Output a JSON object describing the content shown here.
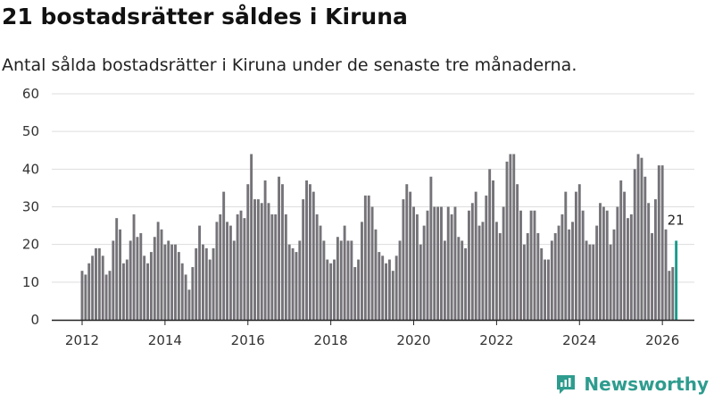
{
  "title": "21 bostadsrätter såldes i Kiruna",
  "subtitle": "Antal sålda bostadsrätter i Kiruna under de senaste tre månaderna.",
  "brand": {
    "name": "Newsworthy",
    "color": "#2e9c8e",
    "icon": "chart-bubble-icon"
  },
  "colors": {
    "bar": "#757378",
    "highlight": "#1a9a8c",
    "grid": "#dddddd",
    "axis": "#222222"
  },
  "chart_data": {
    "type": "bar",
    "title": "21 bostadsrätter såldes i Kiruna",
    "xlabel": "",
    "ylabel": "",
    "ylim": [
      0,
      60
    ],
    "yticks": [
      0,
      10,
      20,
      30,
      40,
      50,
      60
    ],
    "xticks": [
      "2012",
      "2014",
      "2016",
      "2018",
      "2020",
      "2022",
      "2024",
      "2026"
    ],
    "xtick_index": [
      0,
      24,
      48,
      72,
      96,
      120,
      144,
      168
    ],
    "start": "2012-01",
    "grid": true,
    "last_value_label": "21",
    "values": [
      13,
      12,
      15,
      17,
      19,
      19,
      17,
      12,
      13,
      21,
      27,
      24,
      15,
      16,
      21,
      28,
      22,
      23,
      17,
      15,
      18,
      22,
      26,
      24,
      20,
      21,
      20,
      20,
      18,
      15,
      12,
      8,
      14,
      19,
      25,
      20,
      19,
      16,
      19,
      26,
      28,
      34,
      26,
      25,
      21,
      28,
      29,
      27,
      36,
      44,
      32,
      32,
      31,
      37,
      31,
      28,
      28,
      38,
      36,
      28,
      20,
      19,
      18,
      21,
      32,
      37,
      36,
      34,
      28,
      25,
      21,
      16,
      15,
      16,
      22,
      21,
      25,
      21,
      21,
      14,
      16,
      26,
      33,
      33,
      30,
      24,
      18,
      17,
      15,
      16,
      13,
      17,
      21,
      32,
      36,
      34,
      30,
      28,
      20,
      25,
      29,
      38,
      30,
      30,
      30,
      21,
      30,
      28,
      30,
      22,
      21,
      19,
      29,
      31,
      34,
      25,
      26,
      33,
      40,
      37,
      26,
      23,
      30,
      42,
      44,
      44,
      36,
      29,
      20,
      23,
      29,
      29,
      23,
      19,
      16,
      16,
      21,
      23,
      25,
      28,
      34,
      24,
      26,
      34,
      36,
      29,
      21,
      20,
      20,
      25,
      31,
      30,
      29,
      20,
      24,
      30,
      37,
      34,
      27,
      28,
      40,
      44,
      43,
      38,
      31,
      23,
      32,
      41,
      41,
      24,
      13,
      14,
      21
    ]
  }
}
